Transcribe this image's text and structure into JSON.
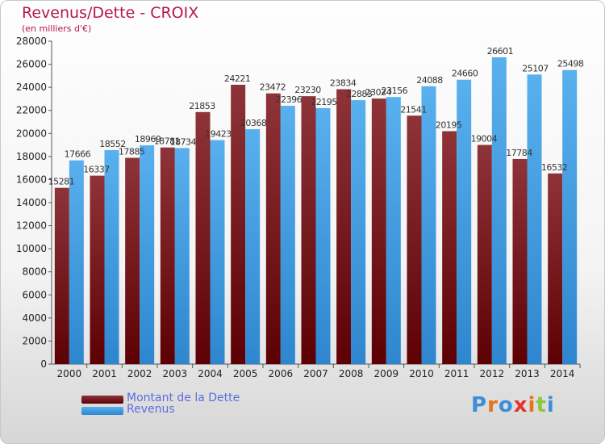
{
  "chart_data": {
    "type": "bar",
    "title": "Revenus/Dette - CROIX",
    "subtitle": "(en milliers d'€)",
    "categories": [
      "2000",
      "2001",
      "2002",
      "2003",
      "2004",
      "2005",
      "2006",
      "2007",
      "2008",
      "2009",
      "2010",
      "2011",
      "2012",
      "2013",
      "2014"
    ],
    "ylim": [
      0,
      28000
    ],
    "yticks": [
      0,
      2000,
      4000,
      6000,
      8000,
      10000,
      12000,
      14000,
      16000,
      18000,
      20000,
      22000,
      24000,
      26000,
      28000
    ],
    "grid": false,
    "legend_position": "bottom-left",
    "series": [
      {
        "name": "Montant de la Dette",
        "color": "#7a1e24",
        "values": [
          15281,
          16337,
          17885,
          18781,
          21853,
          24221,
          23472,
          23230,
          23834,
          23024,
          21541,
          20195,
          19004,
          17784,
          16532
        ]
      },
      {
        "name": "Revenus",
        "color": "#4aa6e6",
        "values": [
          17666,
          18552,
          18969,
          18734,
          19423,
          20368,
          22396,
          22195,
          22883,
          23156,
          24088,
          24660,
          26601,
          25107,
          25498
        ]
      }
    ]
  },
  "logo": {
    "letters": [
      "P",
      "r",
      "o",
      "x",
      "i",
      "t",
      "i"
    ],
    "colors": [
      "#3b8fd6",
      "#e8731c",
      "#3b8fd6",
      "#e3342f",
      "#e8731c",
      "#8cc63f",
      "#3b8fd6"
    ]
  }
}
